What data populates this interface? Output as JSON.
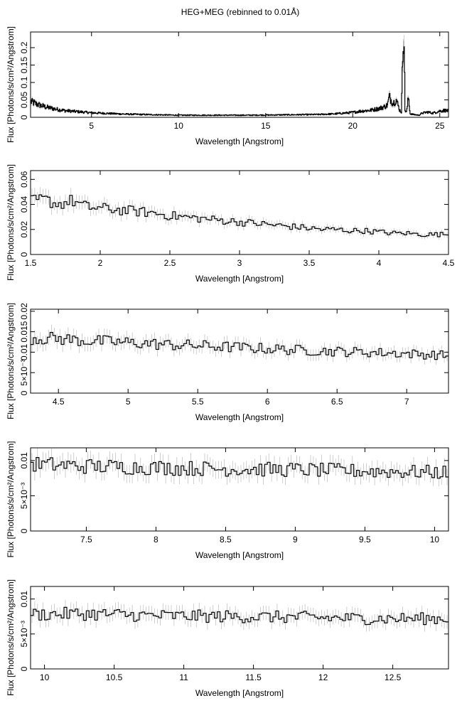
{
  "title": "HEG+MEG (rebinned to 0.01Å)",
  "chart_data": [
    {
      "type": "line",
      "title": "HEG+MEG (rebinned to 0.01Å)",
      "xlabel": "Wavelength [Angstrom]",
      "ylabel": "Flux [Photons/s/cm²/Angstrom]",
      "xlim": [
        1.5,
        25.5
      ],
      "ylim": [
        0,
        0.245
      ],
      "x_ticks": [
        5,
        10,
        15,
        20,
        25
      ],
      "y_ticks": [
        0,
        0.05,
        0.1,
        0.15,
        0.2
      ],
      "y_tick_labels": [
        "0",
        "0.05",
        "0.1",
        "0.15",
        "0.2"
      ],
      "x_tick_labels": [
        "5",
        "10",
        "15",
        "20",
        "25"
      ],
      "series": [
        {
          "x": [
            1.5,
            2,
            2.5,
            3,
            3.5,
            4,
            5,
            6,
            7,
            8,
            10,
            12,
            14,
            16,
            18,
            19,
            19.5,
            20,
            20.5,
            21,
            21.5,
            21.8,
            22,
            22.1,
            22.3,
            22.5,
            22.7,
            22.8,
            22.9,
            22.95,
            23.0,
            23.1,
            23.2,
            23.3,
            23.5,
            23.8,
            24,
            24.3,
            24.6,
            25,
            25.3,
            25.5
          ],
          "y": [
            0.045,
            0.035,
            0.028,
            0.023,
            0.019,
            0.017,
            0.013,
            0.011,
            0.009,
            0.008,
            0.006,
            0.006,
            0.006,
            0.007,
            0.008,
            0.01,
            0.012,
            0.014,
            0.018,
            0.02,
            0.025,
            0.03,
            0.035,
            0.06,
            0.04,
            0.05,
            0.02,
            0.015,
            0.24,
            0.24,
            0.02,
            0.015,
            0.06,
            0.01,
            0.008,
            0.006,
            0.012,
            0.015,
            0.012,
            0.018,
            0.02,
            0.018
          ]
        }
      ]
    },
    {
      "type": "line",
      "xlabel": "Wavelength [Angstrom]",
      "ylabel": "Flux [Photons/s/cm²/Angstrom]",
      "xlim": [
        1.5,
        4.5
      ],
      "ylim": [
        0,
        0.067
      ],
      "x_ticks": [
        1.5,
        2,
        2.5,
        3,
        3.5,
        4,
        4.5
      ],
      "x_tick_labels": [
        "1.5",
        "2",
        "2.5",
        "3",
        "3.5",
        "4",
        "4.5"
      ],
      "y_ticks": [
        0,
        0.02,
        0.04,
        0.06
      ],
      "y_tick_labels": [
        "0",
        "0.02",
        "0.04",
        "0.06"
      ],
      "series": [
        {
          "x": [
            1.5,
            1.6,
            1.7,
            1.8,
            1.9,
            2.0,
            2.1,
            2.2,
            2.3,
            2.4,
            2.5,
            2.6,
            2.7,
            2.8,
            2.9,
            3.0,
            3.1,
            3.2,
            3.3,
            3.4,
            3.5,
            3.6,
            3.7,
            3.8,
            3.9,
            4.0,
            4.1,
            4.2,
            4.3,
            4.4,
            4.5
          ],
          "y": [
            0.042,
            0.044,
            0.04,
            0.043,
            0.038,
            0.037,
            0.036,
            0.035,
            0.034,
            0.033,
            0.031,
            0.03,
            0.029,
            0.028,
            0.027,
            0.026,
            0.025,
            0.024,
            0.023,
            0.022,
            0.021,
            0.02,
            0.02,
            0.019,
            0.019,
            0.018,
            0.017,
            0.017,
            0.016,
            0.016,
            0.016
          ]
        }
      ]
    },
    {
      "type": "line",
      "xlabel": "Wavelength [Angstrom]",
      "ylabel": "Flux [Photons/s/cm²/Angstrom]",
      "xlim": [
        4.3,
        7.3
      ],
      "ylim": [
        0,
        0.0205
      ],
      "x_ticks": [
        4.5,
        5,
        5.5,
        6,
        6.5,
        7
      ],
      "x_tick_labels": [
        "4.5",
        "5",
        "5.5",
        "6",
        "6.5",
        "7"
      ],
      "y_ticks": [
        0,
        0.005,
        0.01,
        0.015,
        0.02
      ],
      "y_tick_labels": [
        "0",
        "5×10⁻³",
        "0.01",
        "0.015",
        "0.02"
      ],
      "series": [
        {
          "x": [
            4.3,
            4.5,
            4.7,
            4.9,
            5.1,
            5.3,
            5.5,
            5.7,
            5.9,
            6.1,
            6.3,
            6.5,
            6.7,
            6.9,
            7.1,
            7.3
          ],
          "y": [
            0.0135,
            0.0133,
            0.0128,
            0.0125,
            0.0122,
            0.0118,
            0.0116,
            0.0113,
            0.011,
            0.0107,
            0.0104,
            0.0102,
            0.01,
            0.0098,
            0.0095,
            0.0092
          ]
        }
      ]
    },
    {
      "type": "line",
      "xlabel": "Wavelength [Angstrom]",
      "ylabel": "Flux [Photons/s/cm²/Angstrom]",
      "xlim": [
        7.1,
        10.1
      ],
      "ylim": [
        0,
        0.0118
      ],
      "x_ticks": [
        7.5,
        8,
        8.5,
        9,
        9.5,
        10
      ],
      "x_tick_labels": [
        "7.5",
        "8",
        "8.5",
        "9",
        "9.5",
        "10"
      ],
      "y_ticks": [
        0,
        0.005,
        0.01
      ],
      "y_tick_labels": [
        "0",
        "5×10⁻³",
        "0.01"
      ],
      "series": [
        {
          "x": [
            7.1,
            7.5,
            8.0,
            8.5,
            9.0,
            9.5,
            10.1
          ],
          "y": [
            0.0095,
            0.0092,
            0.009,
            0.0088,
            0.0087,
            0.0085,
            0.0083
          ]
        }
      ]
    },
    {
      "type": "line",
      "xlabel": "Wavelength [Angstrom]",
      "ylabel": "Flux [Photons/s/cm²/Angstrom]",
      "xlim": [
        9.9,
        12.9
      ],
      "ylim": [
        0,
        0.0118
      ],
      "x_ticks": [
        10,
        10.5,
        11,
        11.5,
        12,
        12.5
      ],
      "x_tick_labels": [
        "10",
        "10.5",
        "11",
        "11.5",
        "12",
        "12.5"
      ],
      "y_ticks": [
        0,
        0.005,
        0.01
      ],
      "y_tick_labels": [
        "0",
        "5×10⁻³",
        "0.01"
      ],
      "series": [
        {
          "x": [
            9.9,
            10.3,
            10.8,
            11.3,
            11.8,
            12.3,
            12.9
          ],
          "y": [
            0.0078,
            0.0079,
            0.0076,
            0.0075,
            0.0074,
            0.0072,
            0.0072
          ]
        }
      ]
    }
  ]
}
